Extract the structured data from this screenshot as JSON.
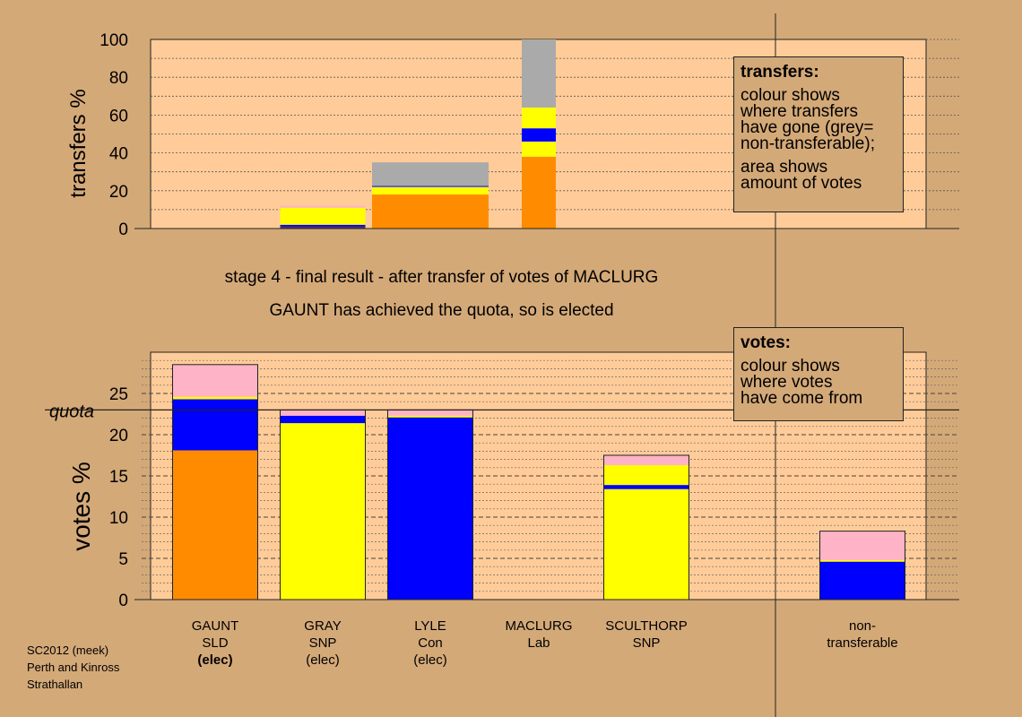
{
  "colors": {
    "background": "#d4a978",
    "plot_area": "#ffcc99",
    "orange": "#ff8c00",
    "yellow": "#ffff00",
    "blue": "#0000ff",
    "pink": "#ffb3c6",
    "grey": "#aaaaaa",
    "dark": "#553355"
  },
  "stage_title": "stage 4 - final result - after transfer of votes of MACLURG",
  "stage_subtitle": "GAUNT has achieved the quota, so is elected",
  "transfers_legend": {
    "title": "transfers:",
    "text1": "colour shows\nwhere transfers\nhave gone (grey=\nnon-transferable);",
    "text2": "area shows\namount of votes"
  },
  "votes_legend": {
    "title": "votes:",
    "text1": "colour shows\nwhere votes\nhave come from"
  },
  "footer": {
    "line1": "SC2012 (meek)",
    "line2": "Perth and Kinross",
    "line3": "Strathallan"
  },
  "candidates": [
    {
      "name": "GAUNT",
      "party": "SLD",
      "status": "(elec)",
      "bold_status": true
    },
    {
      "name": "GRAY",
      "party": "SNP",
      "status": "(elec)",
      "bold_status": false
    },
    {
      "name": "LYLE",
      "party": "Con",
      "status": "(elec)",
      "bold_status": false
    },
    {
      "name": "MACLURG",
      "party": "Lab",
      "status": "",
      "bold_status": false
    },
    {
      "name": "SCULTHORP",
      "party": "SNP",
      "status": "",
      "bold_status": false
    },
    {
      "name": "non-",
      "party": "transferable",
      "status": "",
      "bold_status": false
    }
  ],
  "chart_data": [
    {
      "type": "bar",
      "stacked": true,
      "ylabel": "transfers %",
      "ylim": [
        0,
        100
      ],
      "yticks": [
        0,
        20,
        40,
        60,
        80,
        100
      ],
      "bars": [
        {
          "center": 360,
          "width": 95,
          "segments": [
            {
              "color": "#553355",
              "from": 0,
              "to": 1
            },
            {
              "color": "#0000ff",
              "from": 1,
              "to": 2
            },
            {
              "color": "#ffff00",
              "from": 2,
              "to": 11
            },
            {
              "color": "#ffb3c6",
              "from": 11,
              "to": 12
            }
          ]
        },
        {
          "center": 480,
          "width": 130,
          "segments": [
            {
              "color": "#ff8c00",
              "from": 0,
              "to": 18
            },
            {
              "color": "#ffff00",
              "from": 18,
              "to": 22
            },
            {
              "color": "#0000ff",
              "from": 22,
              "to": 22.5
            },
            {
              "color": "#aaaaaa",
              "from": 22.5,
              "to": 35
            }
          ]
        },
        {
          "center": 601,
          "width": 38,
          "segments": [
            {
              "color": "#ff8c00",
              "from": 0,
              "to": 38
            },
            {
              "color": "#ffff00",
              "from": 38,
              "to": 46
            },
            {
              "color": "#0000ff",
              "from": 46,
              "to": 53
            },
            {
              "color": "#ffff00",
              "from": 53,
              "to": 64
            },
            {
              "color": "#aaaaaa",
              "from": 64,
              "to": 100
            }
          ]
        }
      ]
    },
    {
      "type": "bar",
      "stacked": true,
      "ylabel": "votes %",
      "ylim": [
        0,
        30
      ],
      "yticks": [
        0,
        5,
        10,
        15,
        20,
        25
      ],
      "quota": 23,
      "quota_label": "quota",
      "categories": [
        "GAUNT",
        "GRAY",
        "LYLE",
        "MACLURG",
        "SCULTHORP",
        "non-transferable"
      ],
      "bars": [
        {
          "segments": [
            {
              "color": "#ff8c00",
              "from": 0,
              "to": 18.1
            },
            {
              "color": "#0000ff",
              "from": 18.1,
              "to": 24.3
            },
            {
              "color": "#ffff00",
              "from": 24.3,
              "to": 24.6
            },
            {
              "color": "#ffb3c6",
              "from": 24.6,
              "to": 28.5
            }
          ]
        },
        {
          "segments": [
            {
              "color": "#ffff00",
              "from": 0,
              "to": 21.4
            },
            {
              "color": "#0000ff",
              "from": 21.4,
              "to": 22.3
            },
            {
              "color": "#ffb3c6",
              "from": 22.3,
              "to": 23.0
            }
          ]
        },
        {
          "segments": [
            {
              "color": "#0000ff",
              "from": 0,
              "to": 22.1
            },
            {
              "color": "#ffff00",
              "from": 22.1,
              "to": 22.3
            },
            {
              "color": "#ffb3c6",
              "from": 22.3,
              "to": 23.0
            }
          ]
        },
        {
          "segments": []
        },
        {
          "segments": [
            {
              "color": "#ffff00",
              "from": 0,
              "to": 13.4
            },
            {
              "color": "#0000ff",
              "from": 13.4,
              "to": 13.9
            },
            {
              "color": "#ffff00",
              "from": 13.9,
              "to": 16.3
            },
            {
              "color": "#ffb3c6",
              "from": 16.3,
              "to": 17.5
            }
          ]
        },
        {
          "segments": [
            {
              "color": "#0000ff",
              "from": 0,
              "to": 4.6
            },
            {
              "color": "#ffff00",
              "from": 4.6,
              "to": 4.8
            },
            {
              "color": "#ffb3c6",
              "from": 4.8,
              "to": 8.3
            }
          ]
        }
      ]
    }
  ]
}
